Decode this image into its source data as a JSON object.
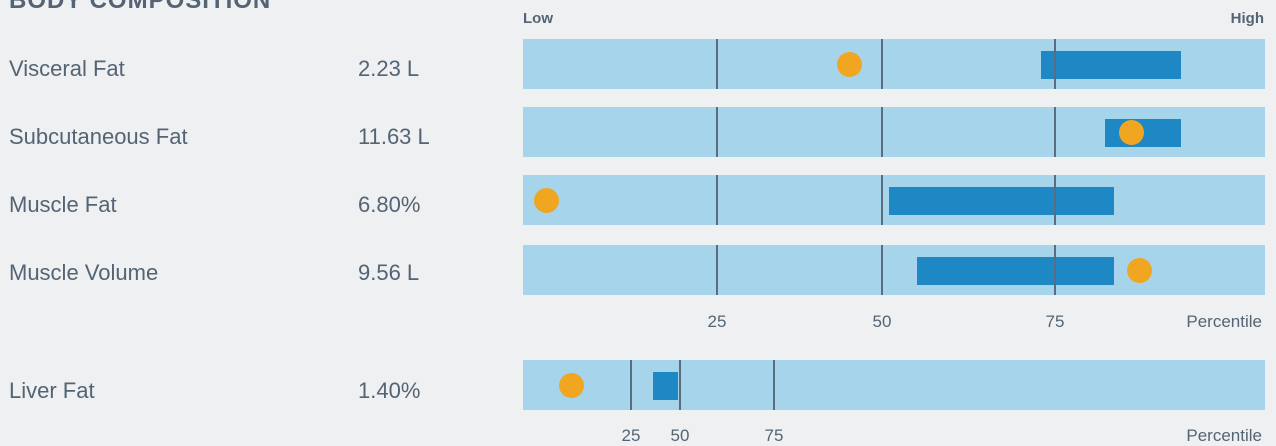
{
  "title": "BODY COMPOSITION",
  "header": {
    "low": "Low",
    "high": "High"
  },
  "chart_data": {
    "type": "range-dot",
    "axis_title": "Percentile",
    "rows": [
      {
        "label": "Visceral Fat",
        "value_text": "2.23 L",
        "range": [
          73,
          90
        ],
        "marker": 45
      },
      {
        "label": "Subcutaneous Fat",
        "value_text": "11.63 L",
        "range": [
          81,
          90
        ],
        "marker": 84
      },
      {
        "label": "Muscle Fat",
        "value_text": "6.80%",
        "range": [
          51,
          82
        ],
        "marker": 3
      },
      {
        "label": "Muscle Volume",
        "value_text": "9.56 L",
        "range": [
          55,
          82
        ],
        "marker": 85
      }
    ],
    "panels": [
      {
        "rows": [
          0,
          1,
          2,
          3
        ],
        "ticks": [
          25,
          50,
          75
        ],
        "tick_labels": [
          "25",
          "50",
          "75"
        ],
        "axis_title": "Percentile"
      },
      {
        "rows": [
          4
        ],
        "ticks": [
          25,
          50,
          75
        ],
        "tick_labels": [
          "25",
          "50",
          "75"
        ],
        "axis_title": "Percentile"
      }
    ],
    "liver": {
      "label": "Liver Fat",
      "value_text": "1.40%",
      "range": [
        36,
        49
      ],
      "marker": 11
    }
  }
}
